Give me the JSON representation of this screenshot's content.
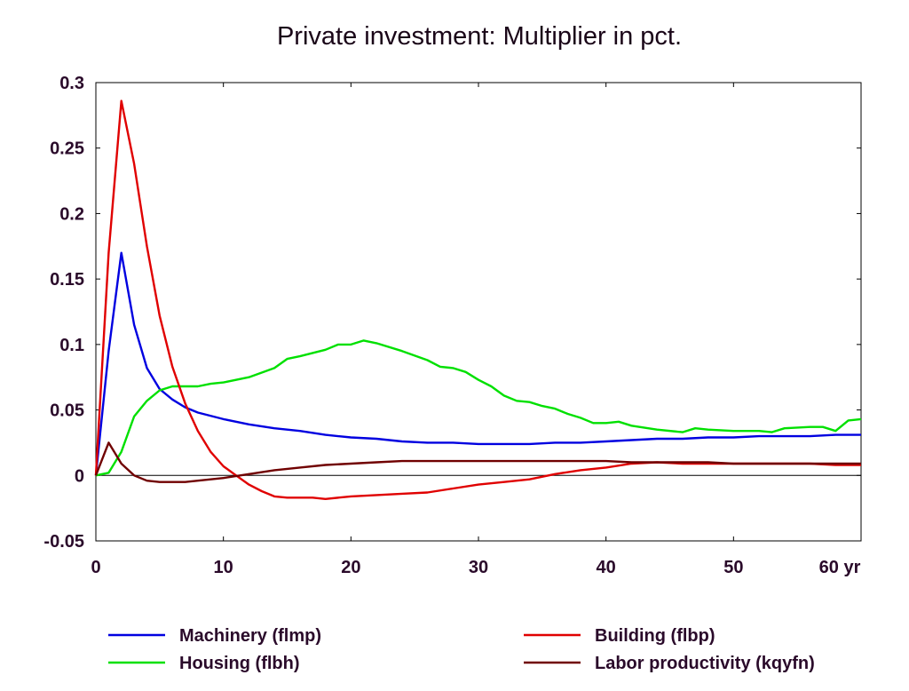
{
  "chart_data": {
    "type": "line",
    "title": "Private investment: Multiplier in pct.",
    "xlabel": "",
    "ylabel": "",
    "x_unit": "yr",
    "xlim": [
      0,
      60
    ],
    "ylim": [
      -0.05,
      0.3
    ],
    "x_ticks": [
      0,
      10,
      20,
      30,
      40,
      50,
      60
    ],
    "x_tick_labels": [
      "0",
      "10",
      "20",
      "30",
      "40",
      "50",
      "60 yr"
    ],
    "y_ticks": [
      -0.05,
      0,
      0.05,
      0.1,
      0.15,
      0.2,
      0.25,
      0.3
    ],
    "y_tick_labels": [
      "-0.05",
      "0",
      "0.05",
      "0.1",
      "0.15",
      "0.2",
      "0.25",
      "0.3"
    ],
    "zero_line": true,
    "grid": false,
    "legend_position": "bottom",
    "series": [
      {
        "name": "Machinery (flmp)",
        "color": "#0000e0",
        "points": [
          [
            0,
            0
          ],
          [
            1,
            0.095
          ],
          [
            2,
            0.17
          ],
          [
            3,
            0.115
          ],
          [
            4,
            0.082
          ],
          [
            5,
            0.066
          ],
          [
            6,
            0.058
          ],
          [
            7,
            0.052
          ],
          [
            8,
            0.048
          ],
          [
            10,
            0.043
          ],
          [
            12,
            0.039
          ],
          [
            14,
            0.036
          ],
          [
            16,
            0.034
          ],
          [
            18,
            0.031
          ],
          [
            20,
            0.029
          ],
          [
            22,
            0.028
          ],
          [
            24,
            0.026
          ],
          [
            26,
            0.025
          ],
          [
            28,
            0.025
          ],
          [
            30,
            0.024
          ],
          [
            32,
            0.024
          ],
          [
            34,
            0.024
          ],
          [
            36,
            0.025
          ],
          [
            38,
            0.025
          ],
          [
            40,
            0.026
          ],
          [
            42,
            0.027
          ],
          [
            44,
            0.028
          ],
          [
            46,
            0.028
          ],
          [
            48,
            0.029
          ],
          [
            50,
            0.029
          ],
          [
            52,
            0.03
          ],
          [
            54,
            0.03
          ],
          [
            56,
            0.03
          ],
          [
            58,
            0.031
          ],
          [
            60,
            0.031
          ]
        ]
      },
      {
        "name": "Housing (flbh)",
        "color": "#00e000",
        "points": [
          [
            0,
            0
          ],
          [
            1,
            0.002
          ],
          [
            2,
            0.018
          ],
          [
            3,
            0.045
          ],
          [
            4,
            0.057
          ],
          [
            5,
            0.065
          ],
          [
            6,
            0.068
          ],
          [
            7,
            0.068
          ],
          [
            8,
            0.068
          ],
          [
            9,
            0.07
          ],
          [
            10,
            0.071
          ],
          [
            12,
            0.075
          ],
          [
            14,
            0.082
          ],
          [
            15,
            0.089
          ],
          [
            16,
            0.091
          ],
          [
            18,
            0.096
          ],
          [
            19,
            0.1
          ],
          [
            20,
            0.1
          ],
          [
            21,
            0.103
          ],
          [
            22,
            0.101
          ],
          [
            24,
            0.095
          ],
          [
            26,
            0.088
          ],
          [
            27,
            0.083
          ],
          [
            28,
            0.082
          ],
          [
            29,
            0.079
          ],
          [
            30,
            0.073
          ],
          [
            31,
            0.068
          ],
          [
            32,
            0.061
          ],
          [
            33,
            0.057
          ],
          [
            34,
            0.056
          ],
          [
            35,
            0.053
          ],
          [
            36,
            0.051
          ],
          [
            37,
            0.047
          ],
          [
            38,
            0.044
          ],
          [
            39,
            0.04
          ],
          [
            40,
            0.04
          ],
          [
            41,
            0.041
          ],
          [
            42,
            0.038
          ],
          [
            44,
            0.035
          ],
          [
            46,
            0.033
          ],
          [
            47,
            0.036
          ],
          [
            48,
            0.035
          ],
          [
            50,
            0.034
          ],
          [
            52,
            0.034
          ],
          [
            53,
            0.033
          ],
          [
            54,
            0.036
          ],
          [
            56,
            0.037
          ],
          [
            57,
            0.037
          ],
          [
            58,
            0.034
          ],
          [
            59,
            0.042
          ],
          [
            60,
            0.043
          ]
        ]
      },
      {
        "name": "Building (flbp)",
        "color": "#e00000",
        "points": [
          [
            0,
            0
          ],
          [
            1,
            0.17
          ],
          [
            2,
            0.286
          ],
          [
            3,
            0.238
          ],
          [
            4,
            0.175
          ],
          [
            5,
            0.122
          ],
          [
            6,
            0.083
          ],
          [
            7,
            0.055
          ],
          [
            8,
            0.034
          ],
          [
            9,
            0.018
          ],
          [
            10,
            0.007
          ],
          [
            11,
            0
          ],
          [
            12,
            -0.007
          ],
          [
            13,
            -0.012
          ],
          [
            14,
            -0.016
          ],
          [
            15,
            -0.017
          ],
          [
            16,
            -0.017
          ],
          [
            17,
            -0.017
          ],
          [
            18,
            -0.018
          ],
          [
            20,
            -0.016
          ],
          [
            22,
            -0.015
          ],
          [
            24,
            -0.014
          ],
          [
            26,
            -0.013
          ],
          [
            28,
            -0.01
          ],
          [
            30,
            -0.007
          ],
          [
            32,
            -0.005
          ],
          [
            34,
            -0.003
          ],
          [
            36,
            0.001
          ],
          [
            38,
            0.004
          ],
          [
            40,
            0.006
          ],
          [
            42,
            0.009
          ],
          [
            44,
            0.01
          ],
          [
            46,
            0.009
          ],
          [
            48,
            0.009
          ],
          [
            50,
            0.009
          ],
          [
            52,
            0.009
          ],
          [
            54,
            0.009
          ],
          [
            56,
            0.009
          ],
          [
            58,
            0.008
          ],
          [
            60,
            0.008
          ]
        ]
      },
      {
        "name": "Labor productivity (kqyfn)",
        "color": "#700000",
        "points": [
          [
            0,
            0
          ],
          [
            1,
            0.025
          ],
          [
            2,
            0.009
          ],
          [
            3,
            0
          ],
          [
            4,
            -0.004
          ],
          [
            5,
            -0.005
          ],
          [
            6,
            -0.005
          ],
          [
            7,
            -0.005
          ],
          [
            8,
            -0.004
          ],
          [
            10,
            -0.002
          ],
          [
            12,
            0.001
          ],
          [
            14,
            0.004
          ],
          [
            16,
            0.006
          ],
          [
            18,
            0.008
          ],
          [
            20,
            0.009
          ],
          [
            22,
            0.01
          ],
          [
            24,
            0.011
          ],
          [
            26,
            0.011
          ],
          [
            28,
            0.011
          ],
          [
            30,
            0.011
          ],
          [
            32,
            0.011
          ],
          [
            34,
            0.011
          ],
          [
            36,
            0.011
          ],
          [
            38,
            0.011
          ],
          [
            40,
            0.011
          ],
          [
            42,
            0.01
          ],
          [
            44,
            0.01
          ],
          [
            46,
            0.01
          ],
          [
            48,
            0.01
          ],
          [
            50,
            0.009
          ],
          [
            52,
            0.009
          ],
          [
            54,
            0.009
          ],
          [
            56,
            0.009
          ],
          [
            58,
            0.009
          ],
          [
            60,
            0.009
          ]
        ]
      }
    ]
  }
}
